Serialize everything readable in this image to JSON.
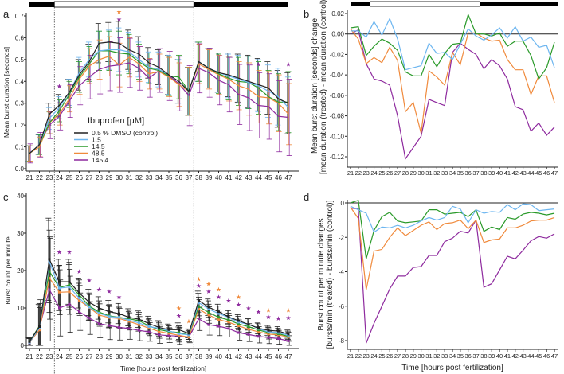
{
  "colors": {
    "control": "#222222",
    "c1_5": "#6db6f0",
    "c14_5": "#2a9a2a",
    "c48_5": "#f08a3c",
    "c145_4": "#8e2a9e",
    "light_bar": "#ffffff",
    "dark_bar": "#000000"
  },
  "legend": {
    "title": "Ibuprofen [µM]",
    "entries": [
      "0.5 % DMSO (control)",
      "1.5",
      "14.5",
      "48.5",
      "145.4"
    ]
  },
  "light_dark_bar": {
    "dark_until_hpf": 23.5,
    "light_until_hpf": 37.5
  },
  "chart_data": [
    {
      "panel": "a",
      "type": "line",
      "ylabel": "Mean burst duration [seconds]",
      "xlabel": "",
      "x": [
        21,
        22,
        23,
        24,
        25,
        26,
        27,
        28,
        29,
        30,
        31,
        32,
        33,
        34,
        35,
        36,
        37,
        38,
        39,
        40,
        41,
        42,
        43,
        44,
        45,
        46,
        47
      ],
      "ylim": [
        0,
        0.7
      ],
      "yticks": [
        "0.0",
        "0.1",
        "0.2",
        "0.3",
        "0.4",
        "0.5",
        "0.6",
        "0.7"
      ],
      "error_halfwidth": [
        0.035,
        0.045,
        0.05,
        0.05,
        0.06,
        0.07,
        0.08,
        0.09,
        0.09,
        0.1,
        0.09,
        0.08,
        0.07,
        0.08,
        0.09,
        0.1,
        0.11,
        0.09,
        0.09,
        0.09,
        0.1,
        0.11,
        0.12,
        0.12,
        0.12,
        0.13,
        0.14
      ],
      "series": [
        {
          "name": "0.5 % DMSO (control)",
          "color": "#222222",
          "values": [
            0.07,
            0.11,
            0.25,
            0.29,
            0.35,
            0.43,
            0.49,
            0.575,
            0.58,
            0.575,
            0.545,
            0.525,
            0.485,
            0.465,
            0.43,
            0.4,
            0.355,
            0.49,
            0.46,
            0.44,
            0.43,
            0.415,
            0.4,
            0.385,
            0.37,
            0.32,
            0.3
          ]
        },
        {
          "name": "1.5",
          "color": "#6db6f0",
          "values": [
            0.07,
            0.11,
            0.23,
            0.28,
            0.35,
            0.44,
            0.5,
            0.54,
            0.545,
            0.545,
            0.535,
            0.5,
            0.465,
            0.455,
            0.43,
            0.4,
            0.355,
            0.49,
            0.46,
            0.44,
            0.425,
            0.41,
            0.395,
            0.38,
            0.355,
            0.33,
            0.28
          ]
        },
        {
          "name": "14.5",
          "color": "#2a9a2a",
          "values": [
            0.07,
            0.11,
            0.21,
            0.265,
            0.34,
            0.42,
            0.48,
            0.54,
            0.54,
            0.53,
            0.525,
            0.49,
            0.46,
            0.45,
            0.425,
            0.42,
            0.355,
            0.49,
            0.46,
            0.435,
            0.415,
            0.4,
            0.395,
            0.37,
            0.33,
            0.305,
            0.305
          ]
        },
        {
          "name": "48.5",
          "color": "#f08a3c",
          "values": [
            0.07,
            0.1,
            0.21,
            0.25,
            0.32,
            0.41,
            0.47,
            0.5,
            0.515,
            0.475,
            0.51,
            0.48,
            0.435,
            0.445,
            0.42,
            0.385,
            0.355,
            0.48,
            0.455,
            0.43,
            0.41,
            0.38,
            0.365,
            0.33,
            0.325,
            0.3,
            0.25
          ]
        },
        {
          "name": "145.4",
          "color": "#8e2a9e",
          "values": [
            0.07,
            0.11,
            0.2,
            0.24,
            0.31,
            0.38,
            0.42,
            0.455,
            0.47,
            0.475,
            0.485,
            0.46,
            0.415,
            0.45,
            0.425,
            0.39,
            0.335,
            0.46,
            0.44,
            0.405,
            0.385,
            0.34,
            0.325,
            0.29,
            0.285,
            0.24,
            0.235
          ]
        }
      ],
      "significance_stars": [
        {
          "x": 24,
          "y": 0.38,
          "color": "#8e2a9e"
        },
        {
          "x": 30,
          "y": 0.72,
          "color": "#f08a3c"
        },
        {
          "x": 30,
          "y": 0.685,
          "color": "#8e2a9e"
        },
        {
          "x": 44,
          "y": 0.48,
          "color": "#8e2a9e"
        },
        {
          "x": 47,
          "y": 0.48,
          "color": "#8e2a9e"
        }
      ]
    },
    {
      "panel": "b",
      "type": "line",
      "ylabel": "Mean burst duration [seconds] change",
      "ylabel2": "[mean duration (treated) - mean duration (control)]",
      "x": [
        21,
        22,
        23,
        24,
        25,
        26,
        27,
        28,
        29,
        30,
        31,
        32,
        33,
        34,
        35,
        36,
        37,
        38,
        39,
        40,
        41,
        42,
        43,
        44,
        45,
        46,
        47
      ],
      "ylim": [
        -0.13,
        0.02
      ],
      "yticks": [
        "0.02",
        "0.00",
        "-0.02",
        "-0.04",
        "-0.06",
        "-0.08",
        "-0.10",
        "-0.12"
      ],
      "series": [
        {
          "name": "1.5",
          "color": "#6db6f0",
          "values": [
            0.003,
            0.003,
            -0.003,
            0.012,
            -0.001,
            0.015,
            -0.005,
            -0.035,
            -0.033,
            -0.031,
            -0.009,
            -0.019,
            -0.018,
            -0.025,
            -0.01,
            0.005,
            -0.002,
            -0.006,
            -0.001,
            0.006,
            -0.004,
            0.007,
            -0.007,
            -0.003,
            -0.013,
            -0.011,
            -0.033
          ]
        },
        {
          "name": "14.5",
          "color": "#2a9a2a",
          "values": [
            0.006,
            0.007,
            -0.021,
            -0.012,
            -0.005,
            -0.009,
            -0.016,
            -0.037,
            -0.041,
            -0.041,
            -0.02,
            -0.032,
            -0.019,
            -0.01,
            -0.009,
            0.019,
            0.0,
            0.0,
            -0.002,
            0.001,
            -0.012,
            -0.007,
            -0.007,
            -0.021,
            -0.044,
            -0.033,
            -0.008
          ]
        },
        {
          "name": "48.5",
          "color": "#f08a3c",
          "values": [
            0.005,
            -0.005,
            -0.029,
            -0.023,
            -0.028,
            -0.013,
            -0.026,
            -0.076,
            -0.067,
            -0.097,
            -0.036,
            -0.042,
            -0.05,
            -0.018,
            -0.03,
            0.001,
            0.001,
            -0.004,
            -0.007,
            -0.006,
            -0.025,
            -0.035,
            -0.035,
            -0.059,
            -0.041,
            -0.041,
            -0.067
          ]
        },
        {
          "name": "145.4",
          "color": "#8e2a9e",
          "values": [
            0.0,
            0.004,
            -0.029,
            -0.044,
            -0.046,
            -0.05,
            -0.08,
            -0.122,
            -0.111,
            -0.1,
            -0.064,
            -0.067,
            -0.07,
            -0.018,
            -0.009,
            -0.015,
            -0.02,
            -0.034,
            -0.025,
            -0.031,
            -0.044,
            -0.071,
            -0.074,
            -0.095,
            -0.087,
            -0.099,
            -0.091
          ]
        }
      ]
    },
    {
      "panel": "c",
      "type": "line",
      "ylabel": "Burst count per minute",
      "xlabel": "Time [hours post fertilization]",
      "x": [
        21,
        22,
        23,
        24,
        25,
        26,
        27,
        28,
        29,
        30,
        31,
        32,
        33,
        34,
        35,
        36,
        37,
        38,
        39,
        40,
        41,
        42,
        43,
        44,
        45,
        46,
        47
      ],
      "ylim": [
        0,
        40
      ],
      "yticks": [
        "0",
        "10",
        "20",
        "30",
        "40"
      ],
      "error_halfwidth": [
        1,
        6,
        11,
        6,
        6,
        4,
        3.5,
        3,
        3,
        2.7,
        2.3,
        2.2,
        2,
        1.8,
        1.5,
        1.8,
        1.2,
        2.5,
        2.2,
        2,
        1.8,
        1.6,
        1.5,
        1.4,
        1.3,
        1.2,
        1.1
      ],
      "series": [
        {
          "name": "0.5 % DMSO (control)",
          "color": "#222222",
          "values": [
            1,
            5,
            23,
            17,
            17,
            14,
            11.5,
            10,
            9,
            8.5,
            7.5,
            7,
            5.8,
            4.8,
            4.2,
            4.2,
            3.2,
            12,
            10.2,
            9,
            7.6,
            6.6,
            5.6,
            4.6,
            4,
            3.8,
            3
          ]
        },
        {
          "name": "1.5",
          "color": "#6db6f0",
          "values": [
            0.8,
            4.6,
            22.4,
            15.3,
            15.6,
            12.6,
            10.2,
            8.6,
            7.7,
            7.5,
            6.7,
            6,
            5,
            4.6,
            3.9,
            3.1,
            2.8,
            11.4,
            9.7,
            8.5,
            7.5,
            6.2,
            5.6,
            4.5,
            3.6,
            3.4,
            2.7
          ]
        },
        {
          "name": "14.5",
          "color": "#2a9a2a",
          "values": [
            1,
            5.2,
            19.8,
            15.4,
            16.2,
            13.5,
            10.5,
            8.9,
            7.9,
            7.5,
            7.1,
            6.6,
            5.2,
            4.2,
            3.7,
            3.4,
            2.8,
            10.4,
            8.8,
            7.5,
            6.8,
            5.7,
            5,
            4.1,
            3.4,
            3.1,
            2.4
          ]
        },
        {
          "name": "48.5",
          "color": "#f08a3c",
          "values": [
            0.8,
            4.1,
            18,
            14.2,
            14.3,
            12,
            10.1,
            8.1,
            7.4,
            7.2,
            6.4,
            5.5,
            4.6,
            3.7,
            3.2,
            2.7,
            2.2,
            9.7,
            8.1,
            6.9,
            6.2,
            5.2,
            4.3,
            3.6,
            3,
            2.8,
            2.2
          ]
        },
        {
          "name": "145.4",
          "color": "#8e2a9e",
          "values": [
            0.7,
            4.7,
            14.9,
            10,
            11,
            9,
            7.3,
            5.8,
            5.3,
            4.8,
            4.5,
            4,
            3.6,
            2.8,
            2.6,
            2.5,
            2.2,
            7.1,
            5.5,
            5.1,
            4.5,
            3.4,
            2.9,
            2.4,
            2.1,
            1.8,
            1.2
          ]
        }
      ],
      "significance_stars": [
        {
          "x": 24,
          "y": 25,
          "color": "#8e2a9e"
        },
        {
          "x": 25,
          "y": 25,
          "color": "#8e2a9e"
        },
        {
          "x": 26,
          "y": 19.8,
          "color": "#8e2a9e"
        },
        {
          "x": 27,
          "y": 17.5,
          "color": "#8e2a9e"
        },
        {
          "x": 28,
          "y": 15,
          "color": "#8e2a9e"
        },
        {
          "x": 29,
          "y": 14.5,
          "color": "#8e2a9e"
        },
        {
          "x": 30,
          "y": 13,
          "color": "#8e2a9e"
        },
        {
          "x": 36,
          "y": 10,
          "color": "#f08a3c"
        },
        {
          "x": 36,
          "y": 8,
          "color": "#8e2a9e"
        },
        {
          "x": 37,
          "y": 6.5,
          "color": "#f08a3c"
        },
        {
          "x": 38,
          "y": 17.8,
          "color": "#f08a3c"
        },
        {
          "x": 38,
          "y": 16,
          "color": "#8e2a9e"
        },
        {
          "x": 39,
          "y": 16.5,
          "color": "#f08a3c"
        },
        {
          "x": 39,
          "y": 14.5,
          "color": "#8e2a9e"
        },
        {
          "x": 40,
          "y": 15,
          "color": "#f08a3c"
        },
        {
          "x": 40,
          "y": 13,
          "color": "#8e2a9e"
        },
        {
          "x": 41,
          "y": 12,
          "color": "#8e2a9e"
        },
        {
          "x": 42,
          "y": 13,
          "color": "#f08a3c"
        },
        {
          "x": 42,
          "y": 11,
          "color": "#8e2a9e"
        },
        {
          "x": 43,
          "y": 10,
          "color": "#8e2a9e"
        },
        {
          "x": 44,
          "y": 9,
          "color": "#8e2a9e"
        },
        {
          "x": 45,
          "y": 9.5,
          "color": "#f08a3c"
        },
        {
          "x": 45,
          "y": 7.7,
          "color": "#8e2a9e"
        },
        {
          "x": 46,
          "y": 7.2,
          "color": "#8e2a9e"
        },
        {
          "x": 47,
          "y": 9.5,
          "color": "#f08a3c"
        },
        {
          "x": 47,
          "y": 7.5,
          "color": "#8e2a9e"
        }
      ]
    },
    {
      "panel": "d",
      "type": "line",
      "ylabel": "Burst count per minute changes",
      "ylabel2": "[bursts/min (treated) - bursts/min (control)]",
      "xlabel": "Time [hours post fertilization]",
      "x": [
        21,
        22,
        23,
        24,
        25,
        26,
        27,
        28,
        29,
        30,
        31,
        32,
        33,
        34,
        35,
        36,
        37,
        38,
        39,
        40,
        41,
        42,
        43,
        44,
        45,
        46,
        47
      ],
      "ylim": [
        -8.5,
        0.5
      ],
      "yticks": [
        "0",
        "-2",
        "-4",
        "-6",
        "-8"
      ],
      "series": [
        {
          "name": "1.5",
          "color": "#6db6f0",
          "values": [
            -0.2,
            -0.4,
            -0.6,
            -1.7,
            -1.4,
            -1.45,
            -1.3,
            -1.45,
            -1.3,
            -1.05,
            -0.85,
            -1.0,
            -0.85,
            -0.2,
            -0.35,
            -1.15,
            -0.4,
            -0.6,
            -0.5,
            -0.55,
            -0.1,
            -0.4,
            -0.05,
            -0.1,
            -0.45,
            -0.4,
            -0.35
          ]
        },
        {
          "name": "14.5",
          "color": "#2a9a2a",
          "values": [
            0,
            0.15,
            -3.25,
            -1.6,
            -0.8,
            -0.55,
            -1.05,
            -1.15,
            -1.1,
            -1.05,
            -0.4,
            -0.4,
            -0.65,
            -0.6,
            -0.55,
            -0.8,
            -0.4,
            -1.65,
            -1.4,
            -1.55,
            -0.85,
            -0.95,
            -0.65,
            -0.55,
            -0.6,
            -0.7,
            -0.6
          ]
        },
        {
          "name": "48.5",
          "color": "#f08a3c",
          "values": [
            -0.25,
            -0.9,
            -5.05,
            -2.8,
            -2.7,
            -2.0,
            -1.45,
            -1.9,
            -1.6,
            -1.3,
            -1.1,
            -1.55,
            -1.2,
            -1.15,
            -1.0,
            -1.5,
            -1.0,
            -2.3,
            -2.15,
            -2.1,
            -1.45,
            -1.45,
            -1.3,
            -1.05,
            -1.0,
            -1.0,
            -0.85
          ]
        },
        {
          "name": "145.4",
          "color": "#8e2a9e",
          "values": [
            -0.3,
            -0.35,
            -8.15,
            -7.0,
            -6.0,
            -5.0,
            -4.25,
            -4.25,
            -3.75,
            -3.7,
            -3.05,
            -3.05,
            -2.25,
            -2.05,
            -1.65,
            -1.75,
            -1.0,
            -4.9,
            -4.7,
            -3.9,
            -3.1,
            -3.25,
            -2.75,
            -2.2,
            -1.95,
            -2.05,
            -1.8
          ]
        }
      ]
    }
  ],
  "panel_letters": [
    "a",
    "b",
    "c",
    "d"
  ]
}
